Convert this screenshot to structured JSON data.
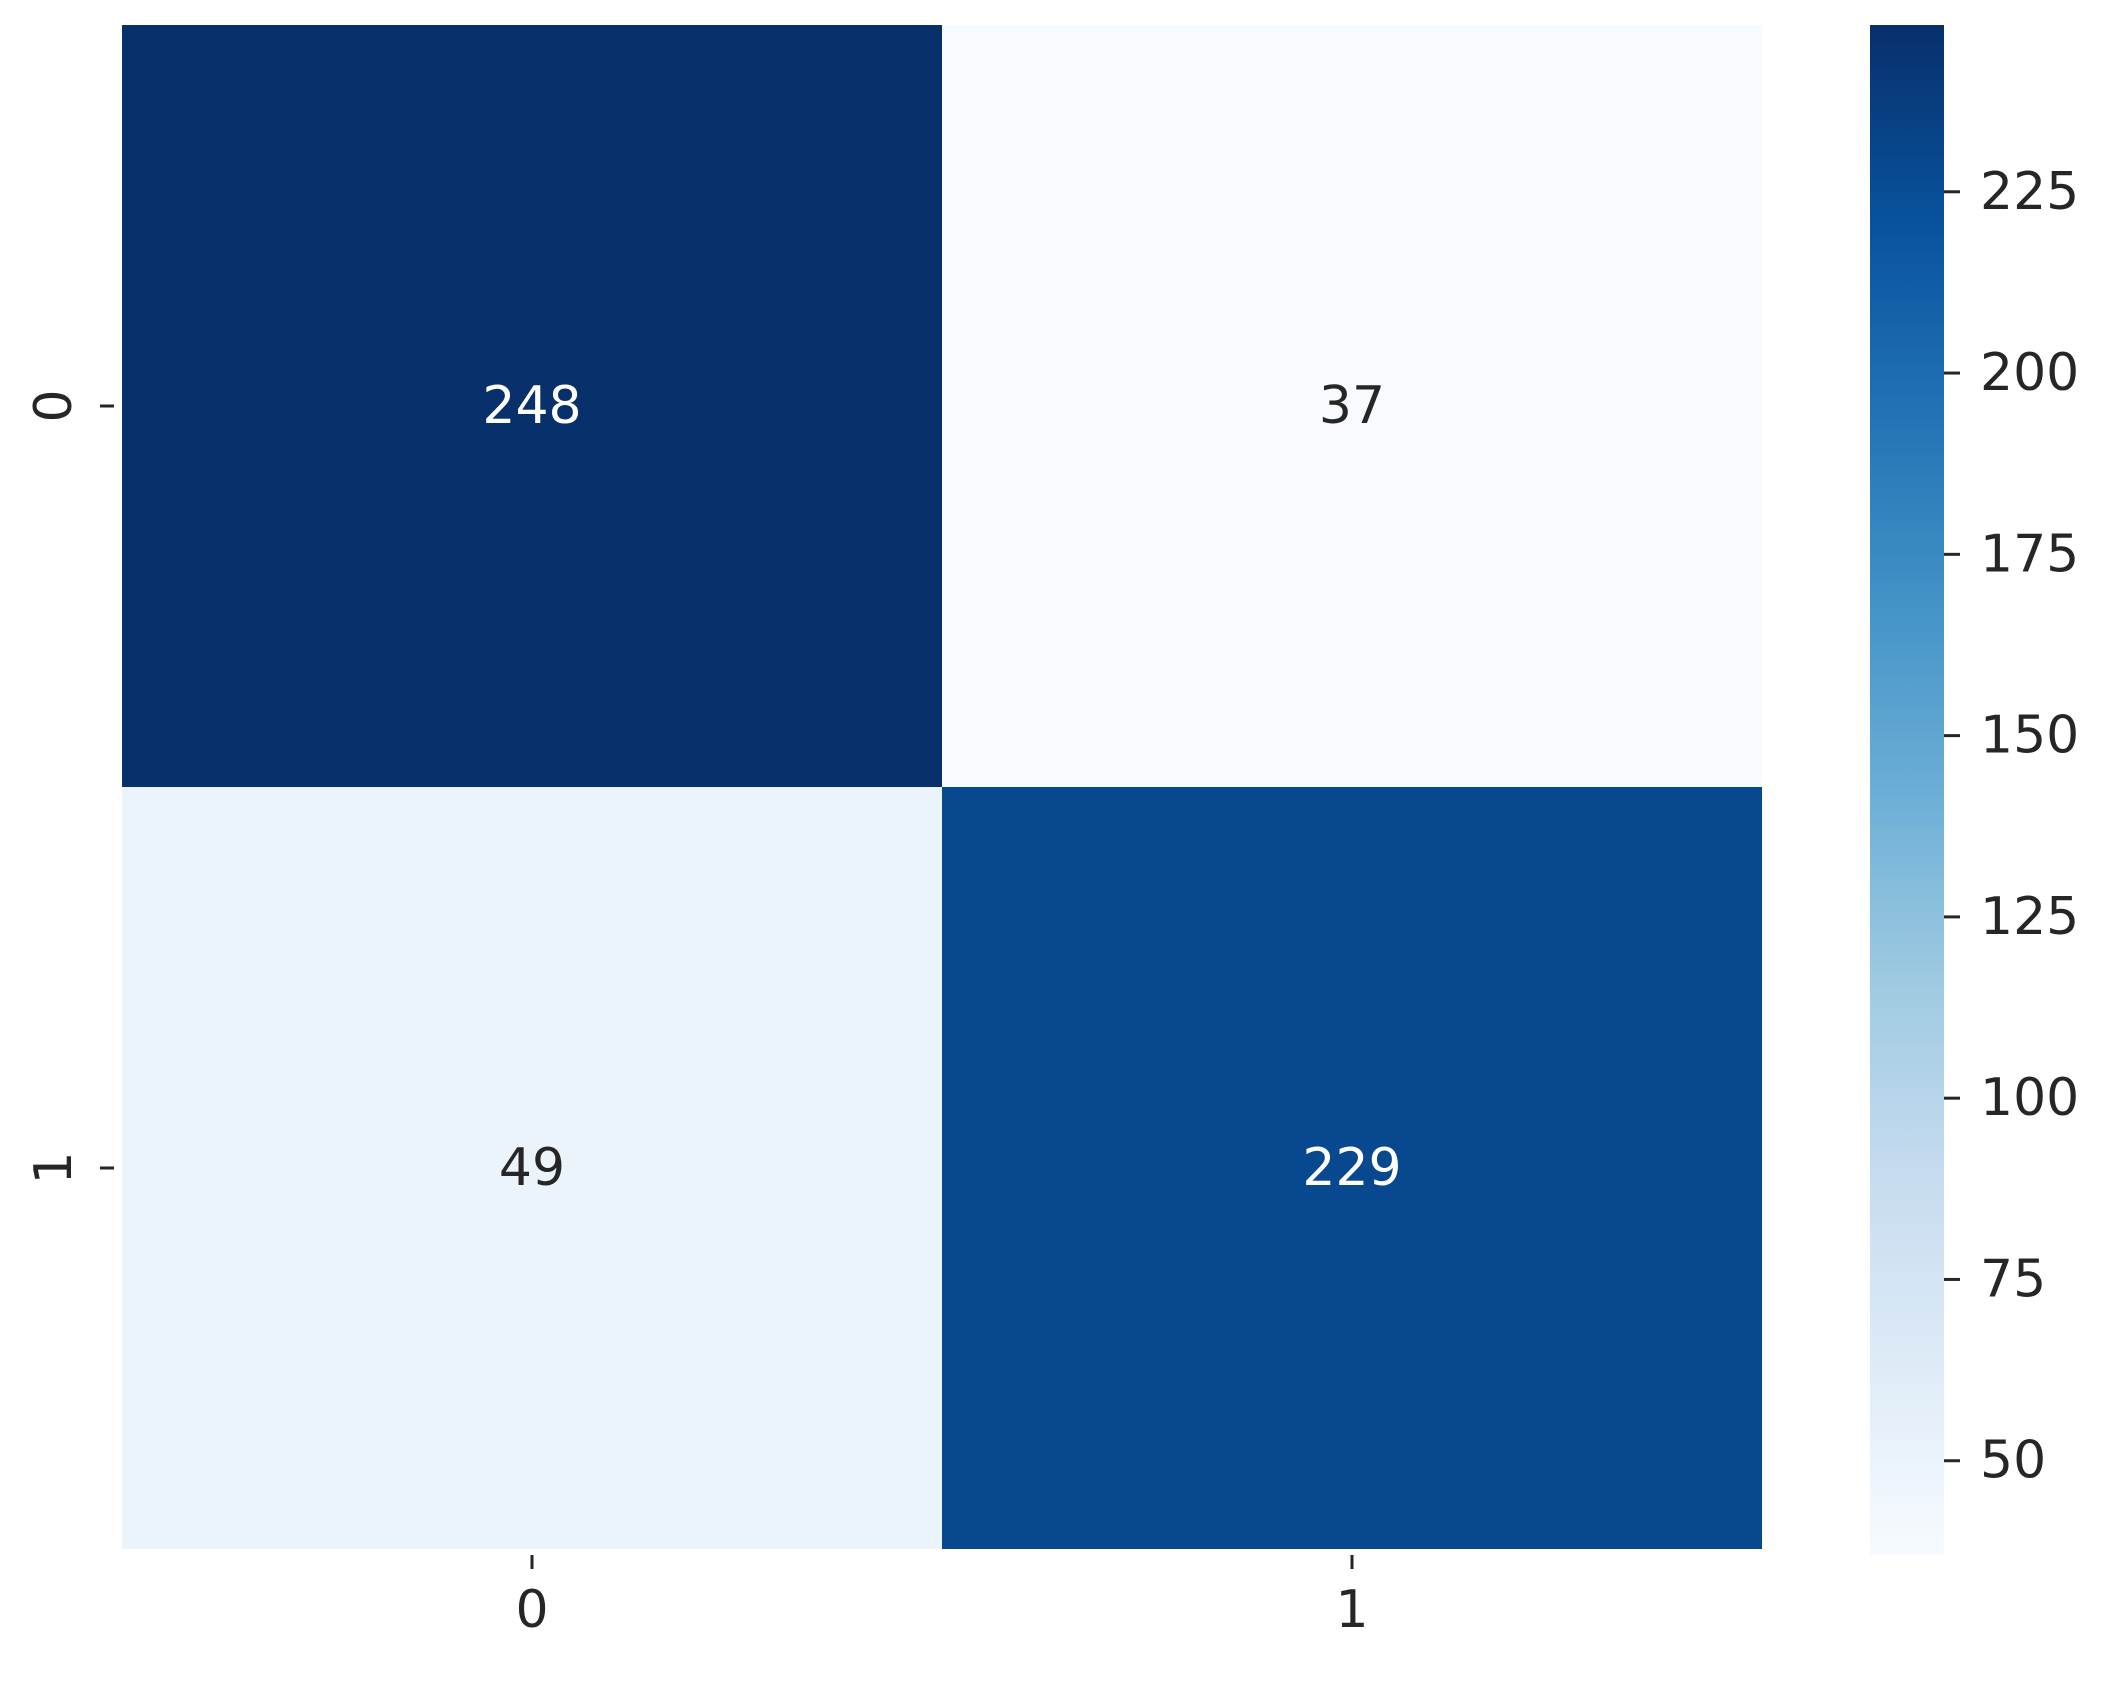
{
  "chart_data": {
    "type": "heatmap",
    "title": "",
    "xlabel": "",
    "ylabel": "",
    "x_categories": [
      "0",
      "1"
    ],
    "y_categories": [
      "0",
      "1"
    ],
    "values": [
      [
        248,
        37
      ],
      [
        49,
        229
      ]
    ],
    "annotations": [
      "248",
      "37",
      "49",
      "229"
    ],
    "colormap": "Blues",
    "colorbar": {
      "min": 37,
      "max": 248,
      "ticks": [
        50,
        75,
        100,
        125,
        150,
        175,
        200,
        225
      ],
      "tick_labels": [
        "50",
        "75",
        "100",
        "125",
        "150",
        "175",
        "200",
        "225"
      ]
    },
    "grid": false,
    "legend": "colorbar-right"
  }
}
